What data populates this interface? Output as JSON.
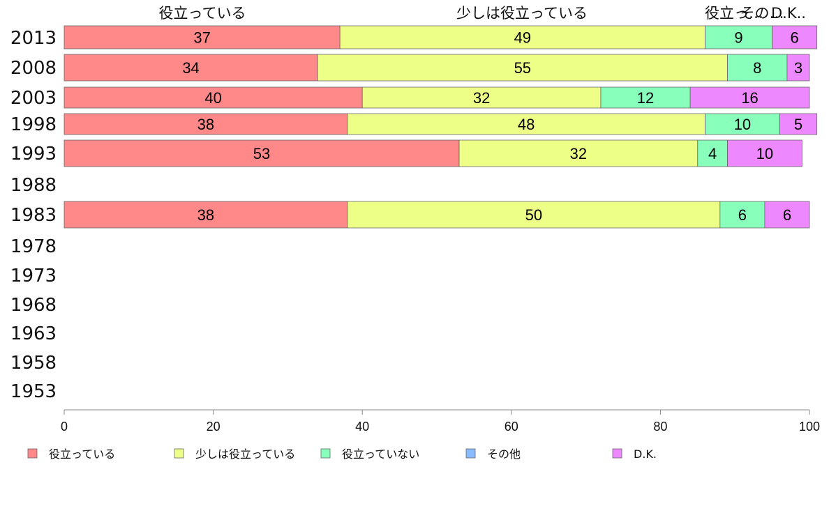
{
  "chart_data": {
    "type": "bar",
    "orientation": "horizontal",
    "stacked": true,
    "categories": [
      "2013",
      "2008",
      "2003",
      "1998",
      "1993",
      "1988",
      "1983",
      "1978",
      "1973",
      "1968",
      "1963",
      "1958",
      "1953"
    ],
    "series": [
      {
        "name": "役立っている",
        "color": "#ff8888",
        "values": [
          37,
          34,
          40,
          38,
          53,
          null,
          38,
          null,
          null,
          null,
          null,
          null,
          null
        ]
      },
      {
        "name": "少しは役立っている",
        "color": "#eeff88",
        "values": [
          49,
          55,
          32,
          48,
          32,
          null,
          50,
          null,
          null,
          null,
          null,
          null,
          null
        ]
      },
      {
        "name": "役立っていない",
        "color": "#88ffbb",
        "values": [
          9,
          8,
          12,
          10,
          4,
          null,
          6,
          null,
          null,
          null,
          null,
          null,
          null
        ]
      },
      {
        "name": "その他",
        "color": "#88bbff",
        "values": [
          0,
          0,
          0,
          0,
          0,
          null,
          0,
          null,
          null,
          null,
          null,
          null,
          null
        ]
      },
      {
        "name": "D.K.",
        "color": "#ee88ff",
        "values": [
          6,
          3,
          16,
          5,
          10,
          null,
          6,
          null,
          null,
          null,
          null,
          null,
          null
        ]
      }
    ],
    "top_labels": [
      "役立っている",
      "少しは役立っている",
      "役立っ…",
      "その…",
      "D.K.."
    ],
    "xlim": [
      0,
      100
    ],
    "xticks": [
      "0",
      "20",
      "40",
      "60",
      "80",
      "100"
    ],
    "grid": false,
    "legend": "bottom"
  }
}
